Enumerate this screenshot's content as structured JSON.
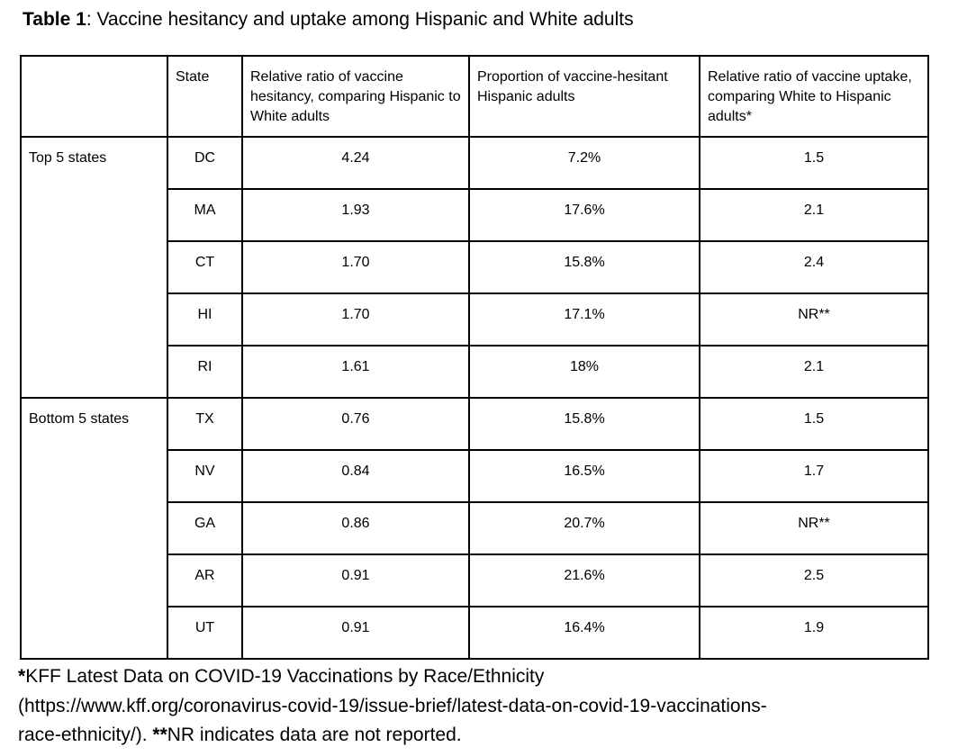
{
  "page": {
    "title_bold": "Table 1",
    "title_rest": ": Vaccine hesitancy and uptake among Hispanic and White adults"
  },
  "table": {
    "headers": {
      "group": "",
      "state": "State",
      "hesitancy": "Relative ratio of vaccine hesitancy, comparing Hispanic to White adults",
      "proportion": "Proportion of vaccine-hesitant Hispanic adults",
      "uptake": "Relative ratio of vaccine uptake, comparing White to Hispanic adults*"
    },
    "groups": [
      {
        "label": "Top 5 states",
        "rows": [
          {
            "state": "DC",
            "hesitancy": "4.24",
            "proportion": "7.2%",
            "uptake": "1.5"
          },
          {
            "state": "MA",
            "hesitancy": "1.93",
            "proportion": "17.6%",
            "uptake": "2.1"
          },
          {
            "state": "CT",
            "hesitancy": "1.70",
            "proportion": "15.8%",
            "uptake": "2.4"
          },
          {
            "state": "HI",
            "hesitancy": "1.70",
            "proportion": "17.1%",
            "uptake": "NR**"
          },
          {
            "state": "RI",
            "hesitancy": "1.61",
            "proportion": "18%",
            "uptake": "2.1"
          }
        ]
      },
      {
        "label": "Bottom 5 states",
        "rows": [
          {
            "state": "TX",
            "hesitancy": "0.76",
            "proportion": "15.8%",
            "uptake": "1.5"
          },
          {
            "state": "NV",
            "hesitancy": "0.84",
            "proportion": "16.5%",
            "uptake": "1.7"
          },
          {
            "state": "GA",
            "hesitancy": "0.86",
            "proportion": "20.7%",
            "uptake": "NR**"
          },
          {
            "state": "AR",
            "hesitancy": "0.91",
            "proportion": "21.6%",
            "uptake": "2.5"
          },
          {
            "state": "UT",
            "hesitancy": "0.91",
            "proportion": "16.4%",
            "uptake": "1.9"
          }
        ]
      }
    ]
  },
  "footnotes": {
    "line1_star": "*",
    "line1_text": "KFF Latest Data on COVID-19 Vaccinations by Race/Ethnicity",
    "line2_text": "(https://www.kff.org/coronavirus-covid-19/issue-brief/latest-data-on-covid-19-vaccinations-",
    "line3_pre": "race-ethnicity/). ",
    "line3_stars": "**",
    "line3_text": "NR indicates data are not reported."
  },
  "colors": {
    "text": "#000000",
    "border": "#000000",
    "background": "#ffffff"
  }
}
